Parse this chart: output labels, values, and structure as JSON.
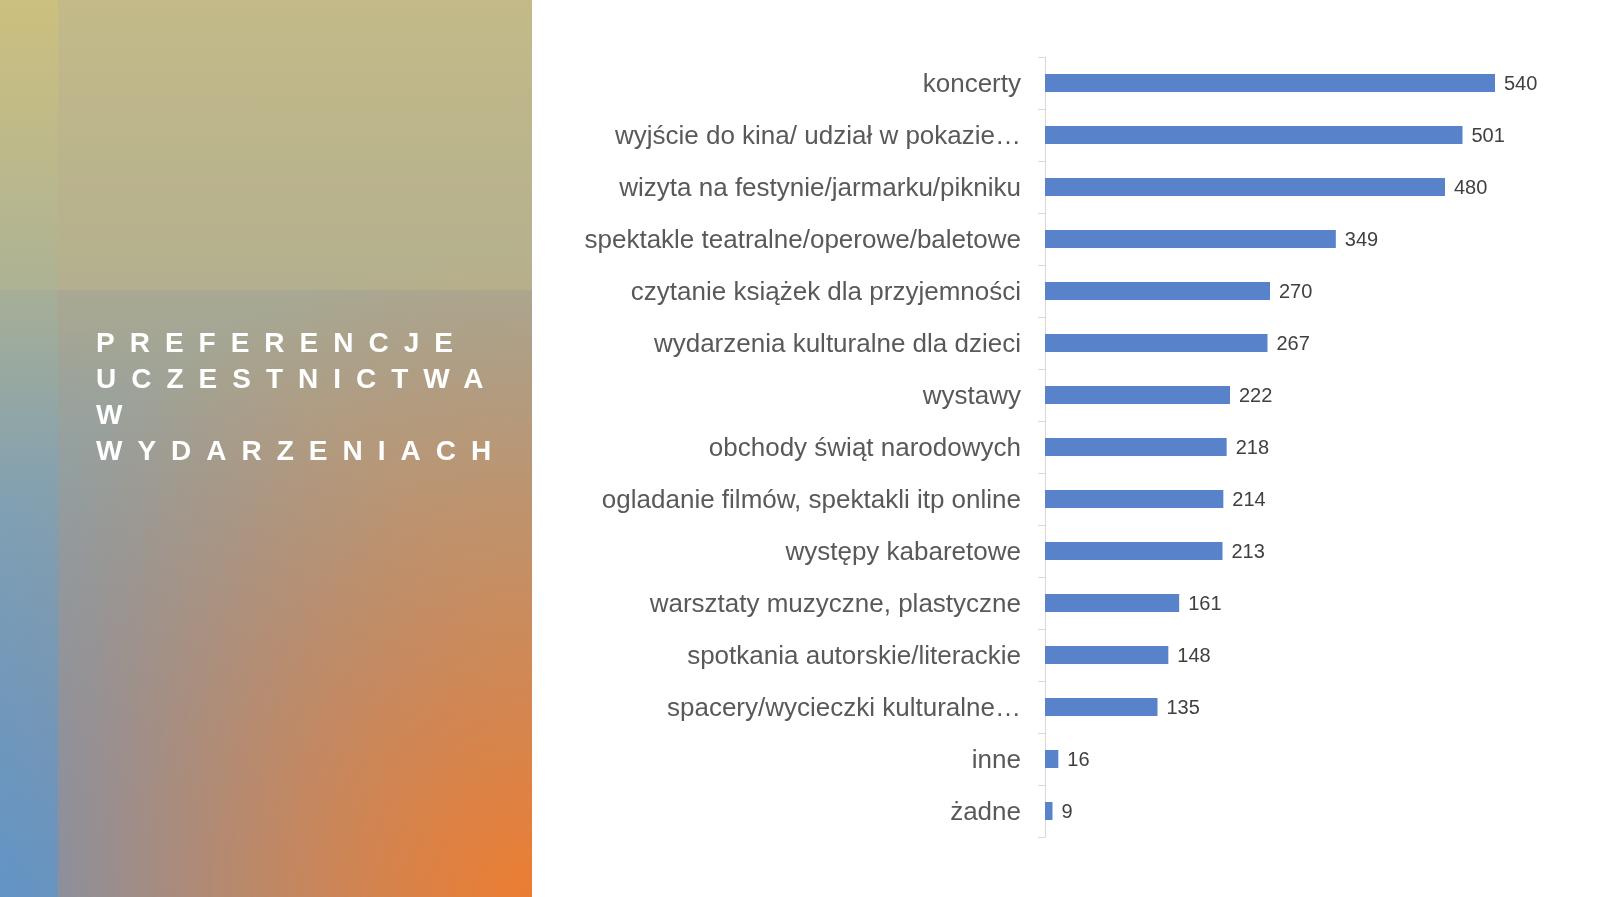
{
  "chart_data": {
    "type": "bar",
    "orientation": "horizontal",
    "title": "PREFERENCJE UCZESTNICTWA W WYDARZENIACH",
    "categories": [
      "koncerty",
      "wyjście do kina/ udział w pokazie…",
      "wizyta na festynie/jarmarku/pikniku",
      "spektakle teatralne/operowe/baletowe",
      "czytanie książek dla przyjemności",
      "wydarzenia kulturalne dla dzieci",
      "wystawy",
      "obchody świąt narodowych",
      "ogladanie filmów, spektakli itp online",
      "występy kabaretowe",
      "warsztaty muzyczne, plastyczne",
      "spotkania autorskie/literackie",
      "spacery/wycieczki kulturalne…",
      "inne",
      "żadne"
    ],
    "values": [
      540,
      501,
      480,
      349,
      270,
      267,
      222,
      218,
      214,
      213,
      161,
      148,
      135,
      16,
      9
    ],
    "color": "#5883ca",
    "data_labels": true
  }
}
